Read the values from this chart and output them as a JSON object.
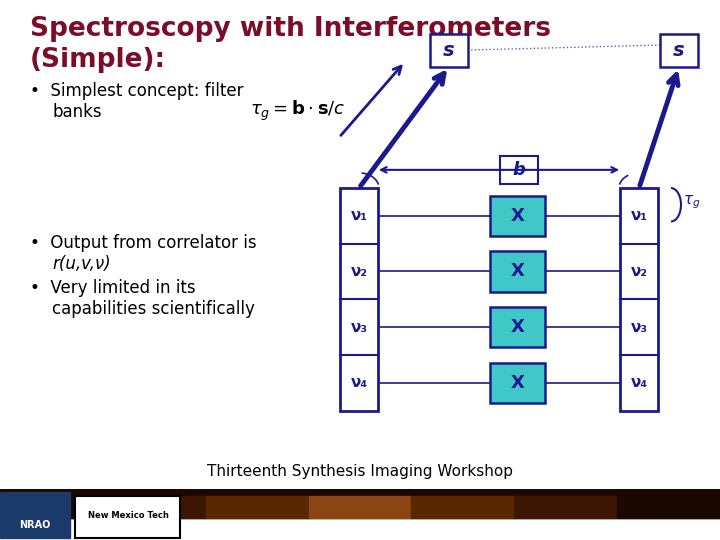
{
  "title_line1": "Spectroscopy with Interferometers",
  "title_line2": "(Simple):",
  "title_color": "#7B0D2A",
  "title_fontsize": 19,
  "bg_color": "#FFFFFF",
  "bullet_color": "#000080",
  "text_color": "#000000",
  "bullet1_line1": "Simplest concept: filter",
  "bullet1_line2": "banks",
  "bullet2_line1": "Output from correlator is",
  "bullet2_line2": "r(u,v,ν)",
  "bullet3_line1": "Very limited in its",
  "bullet3_line2": "capabilities scientifically",
  "footer": "Thirteenth Synthesis Imaging Workshop",
  "diagram_color": "#1A1A8C",
  "box_fill": "#40C8C8",
  "nu_labels": [
    "ν₁",
    "ν₂",
    "ν₃",
    "ν₄"
  ],
  "footer_strip_color": "#3a1a00",
  "nrao_blue": "#1a3a6a"
}
